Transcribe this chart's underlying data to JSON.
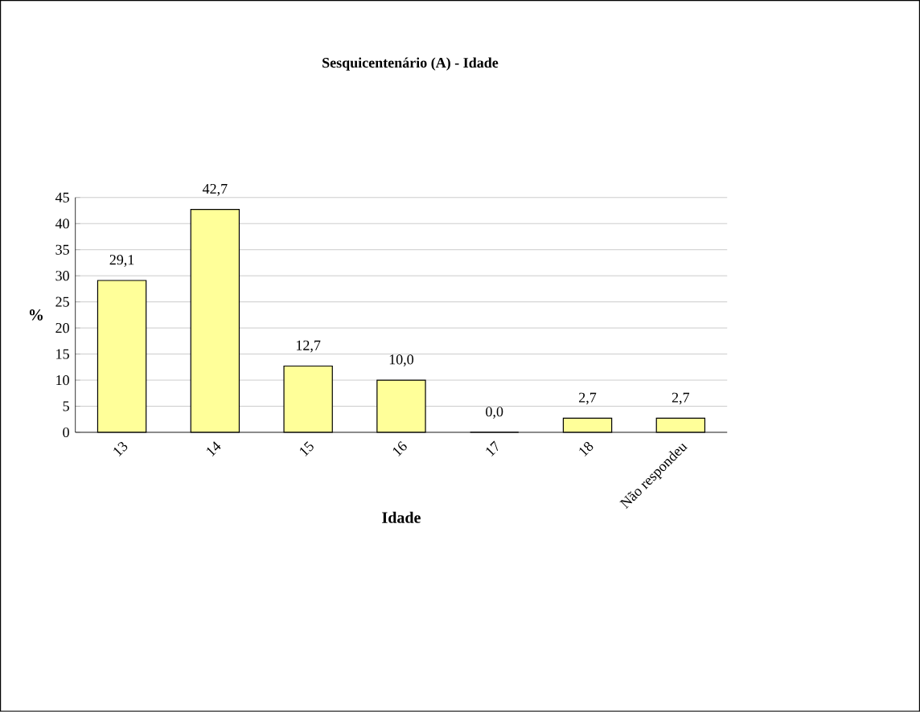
{
  "chart_data": {
    "type": "bar",
    "title": "Sesquicentenário (A) - Idade",
    "xlabel": "Idade",
    "ylabel": "%",
    "categories": [
      "13",
      "14",
      "15",
      "16",
      "17",
      "18",
      "Não respondeu"
    ],
    "values": [
      29.1,
      42.7,
      12.7,
      10.0,
      0.0,
      2.7,
      2.7
    ],
    "value_labels": [
      "29,1",
      "42,7",
      "12,7",
      "10,0",
      "0,0",
      "2,7",
      "2,7"
    ],
    "color": "#ffff99",
    "ylim": [
      0,
      45
    ],
    "yticks": [
      0,
      5,
      10,
      15,
      20,
      25,
      30,
      35,
      40,
      45
    ],
    "grid": "y"
  }
}
